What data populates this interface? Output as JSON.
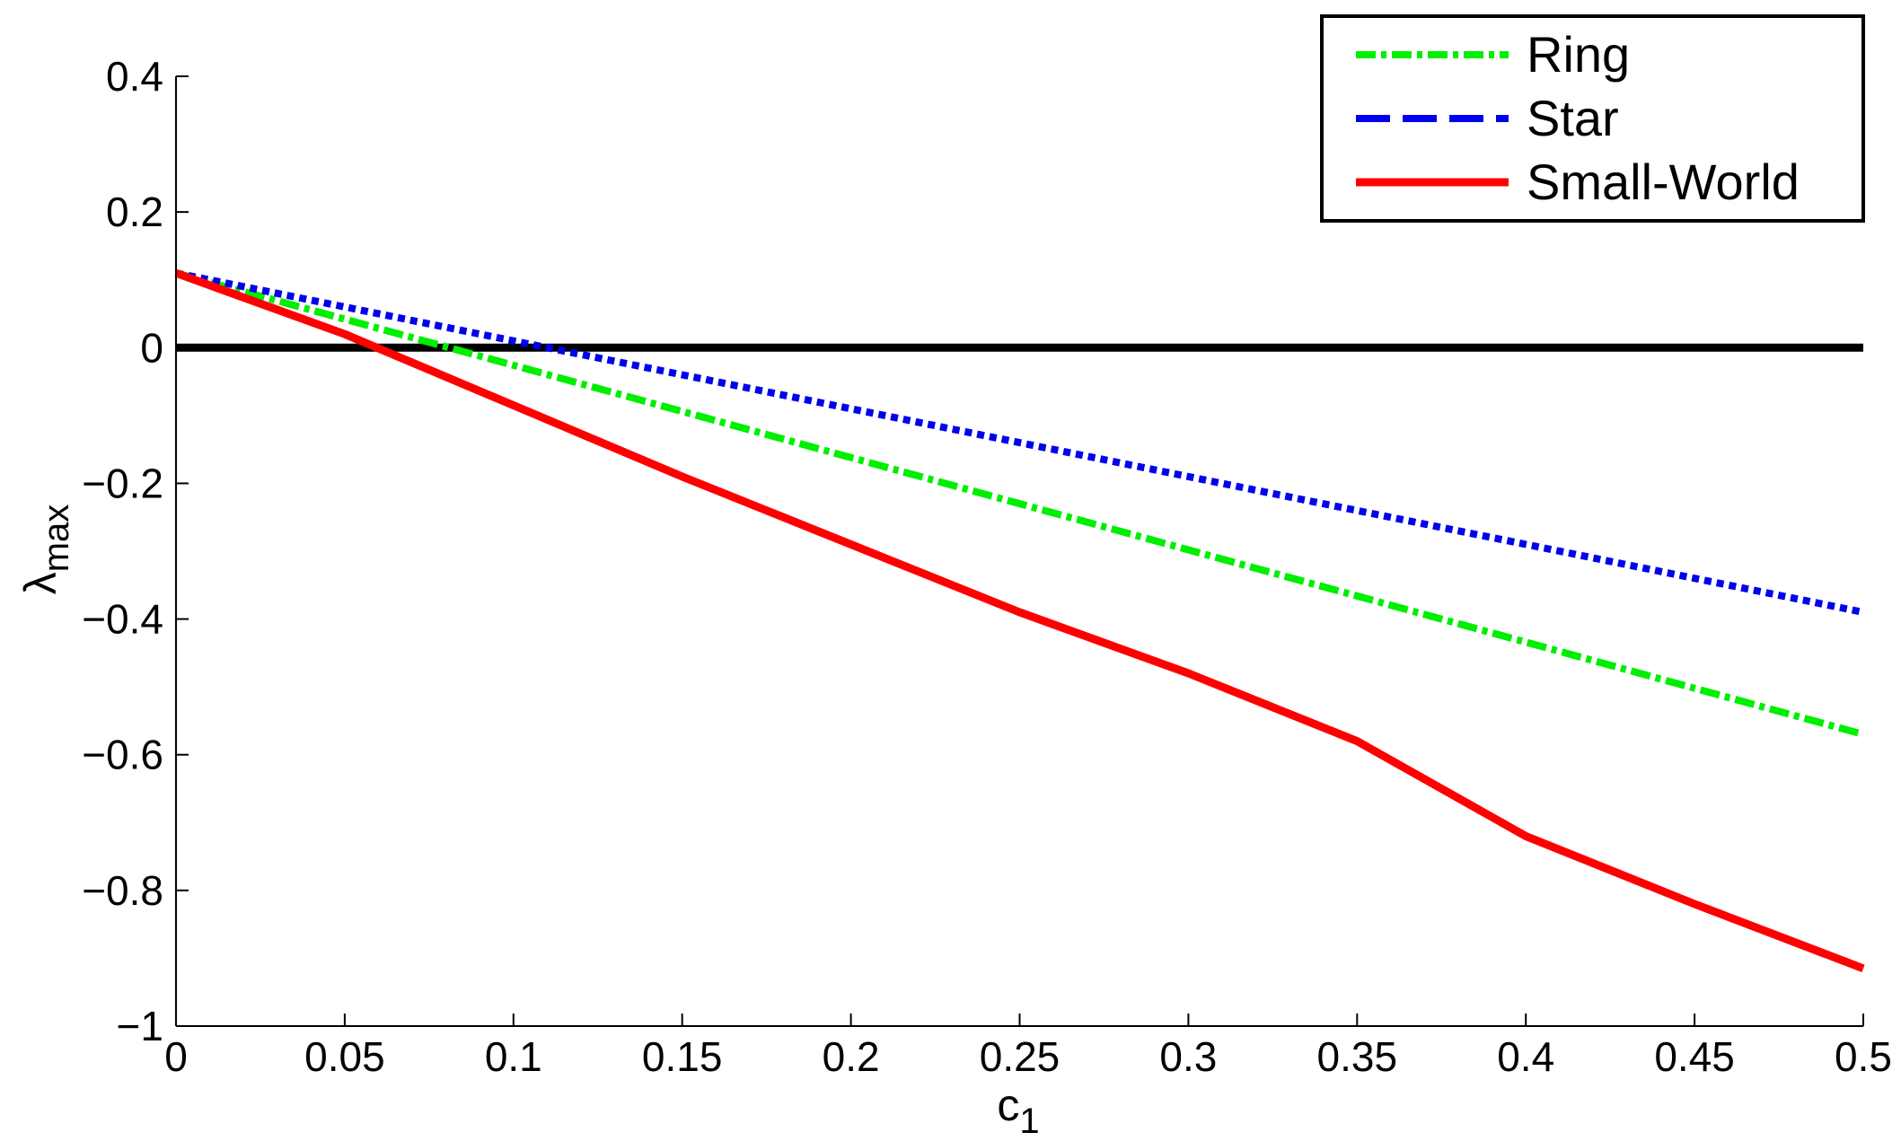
{
  "chart_data": {
    "type": "line",
    "xlabel": "c",
    "xlabel_sub": "1",
    "ylabel": "λ",
    "ylabel_sub": "max",
    "xlim": [
      0,
      0.5
    ],
    "ylim": [
      -1,
      0.4
    ],
    "xticks": [
      0,
      0.05,
      0.1,
      0.15,
      0.2,
      0.25,
      0.3,
      0.35,
      0.4,
      0.45,
      0.5
    ],
    "xtick_labels": [
      "0",
      "0.05",
      "0.1",
      "0.15",
      "0.2",
      "0.25",
      "0.3",
      "0.35",
      "0.4",
      "0.45",
      "0.5"
    ],
    "yticks": [
      -1,
      -0.8,
      -0.6,
      -0.4,
      -0.2,
      0,
      0.2,
      0.4
    ],
    "ytick_labels": [
      "−1",
      "−0.8",
      "−0.6",
      "−0.4",
      "−0.2",
      "0",
      "0.2",
      "0.4"
    ],
    "grid": false,
    "legend_position": "top-right",
    "reference_line": {
      "y": 0,
      "color": "#000000"
    },
    "series": [
      {
        "name": "Ring",
        "color": "#00ee00",
        "style": "dash-dot",
        "x": [
          0,
          0.05,
          0.1,
          0.15,
          0.2,
          0.25,
          0.3,
          0.35,
          0.4,
          0.45,
          0.5
        ],
        "y": [
          0.11,
          0.042,
          -0.026,
          -0.094,
          -0.162,
          -0.23,
          -0.298,
          -0.366,
          -0.434,
          -0.502,
          -0.57
        ]
      },
      {
        "name": "Star",
        "color": "#0000ee",
        "style": "dotted",
        "legend_style": "dashed",
        "x": [
          0,
          0.05,
          0.1,
          0.15,
          0.2,
          0.25,
          0.3,
          0.35,
          0.4,
          0.45,
          0.5
        ],
        "y": [
          0.11,
          0.06,
          0.01,
          -0.04,
          -0.09,
          -0.14,
          -0.19,
          -0.24,
          -0.29,
          -0.34,
          -0.39
        ]
      },
      {
        "name": "Small-World",
        "color": "#ff0000",
        "style": "solid",
        "x": [
          0,
          0.05,
          0.1,
          0.15,
          0.2,
          0.25,
          0.3,
          0.35,
          0.4,
          0.45,
          0.5
        ],
        "y": [
          0.11,
          0.02,
          -0.085,
          -0.19,
          -0.29,
          -0.39,
          -0.48,
          -0.58,
          -0.72,
          -0.82,
          -0.915
        ]
      }
    ]
  }
}
